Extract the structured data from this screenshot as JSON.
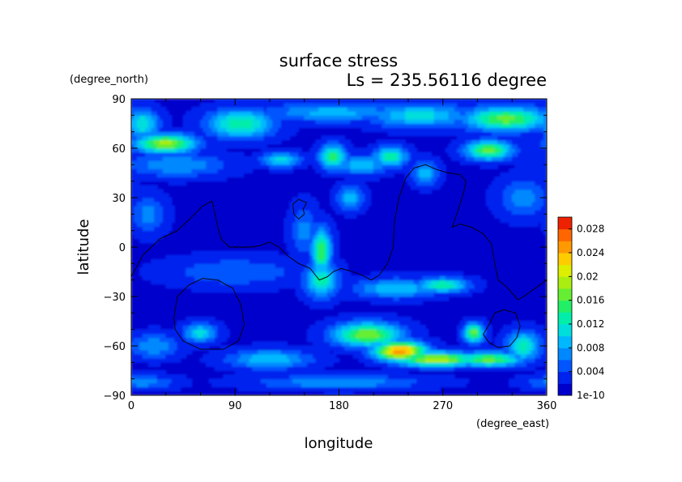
{
  "chart_data": {
    "type": "heatmap",
    "title": "surface stress",
    "subtitle": "Ls = 235.56116 degree",
    "xlabel": "longitude",
    "ylabel": "latitude",
    "x_units": "(degree_east)",
    "y_units": "(degree_north)",
    "xlim": [
      0,
      360
    ],
    "ylim": [
      -90,
      90
    ],
    "x_ticks": [
      "0",
      "90",
      "180",
      "270",
      "360"
    ],
    "y_ticks": [
      "90",
      "60",
      "30",
      "0",
      "−30",
      "−60",
      "−90"
    ],
    "colorbar": {
      "ticks": [
        "0.028",
        "0.024",
        "0.02",
        "0.016",
        "0.012",
        "0.008",
        "0.004",
        "1e-10"
      ],
      "tick_values": [
        0.028,
        0.024,
        0.02,
        0.016,
        0.012,
        0.008,
        0.004,
        0.0
      ],
      "range": [
        0,
        0.03
      ],
      "levels": 15,
      "colors": [
        "#0000cc",
        "#0022ee",
        "#0055ff",
        "#0088ff",
        "#00b8ff",
        "#00dddd",
        "#00eeaa",
        "#22ee66",
        "#66ee33",
        "#aaee11",
        "#ddee00",
        "#ffcc00",
        "#ff9900",
        "#ff6600",
        "#ee2200"
      ]
    },
    "hotspots": [
      {
        "lon": 30,
        "lat": 63,
        "value": 0.019,
        "sx": 18,
        "sy": 4
      },
      {
        "lon": 325,
        "lat": 78,
        "value": 0.017,
        "sx": 25,
        "sy": 5
      },
      {
        "lon": 95,
        "lat": 75,
        "value": 0.014,
        "sx": 20,
        "sy": 6
      },
      {
        "lon": 250,
        "lat": 80,
        "value": 0.011,
        "sx": 30,
        "sy": 5
      },
      {
        "lon": 10,
        "lat": 75,
        "value": 0.012,
        "sx": 10,
        "sy": 6
      },
      {
        "lon": 175,
        "lat": 82,
        "value": 0.009,
        "sx": 40,
        "sy": 4
      },
      {
        "lon": 310,
        "lat": 59,
        "value": 0.017,
        "sx": 14,
        "sy": 4
      },
      {
        "lon": 175,
        "lat": 55,
        "value": 0.015,
        "sx": 8,
        "sy": 5
      },
      {
        "lon": 225,
        "lat": 55,
        "value": 0.014,
        "sx": 10,
        "sy": 4
      },
      {
        "lon": 130,
        "lat": 53,
        "value": 0.011,
        "sx": 12,
        "sy": 3
      },
      {
        "lon": 200,
        "lat": 50,
        "value": 0.01,
        "sx": 15,
        "sy": 4
      },
      {
        "lon": 40,
        "lat": 50,
        "value": 0.008,
        "sx": 30,
        "sy": 5
      },
      {
        "lon": 255,
        "lat": 45,
        "value": 0.009,
        "sx": 8,
        "sy": 5
      },
      {
        "lon": 340,
        "lat": 30,
        "value": 0.007,
        "sx": 15,
        "sy": 8
      },
      {
        "lon": 165,
        "lat": -2,
        "value": 0.016,
        "sx": 6,
        "sy": 9
      },
      {
        "lon": 165,
        "lat": -20,
        "value": 0.013,
        "sx": 10,
        "sy": 7
      },
      {
        "lon": 150,
        "lat": 10,
        "value": 0.007,
        "sx": 8,
        "sy": 10
      },
      {
        "lon": 190,
        "lat": 30,
        "value": 0.009,
        "sx": 8,
        "sy": 5
      },
      {
        "lon": 270,
        "lat": -23,
        "value": 0.014,
        "sx": 15,
        "sy": 3
      },
      {
        "lon": 230,
        "lat": -25,
        "value": 0.01,
        "sx": 25,
        "sy": 4
      },
      {
        "lon": 90,
        "lat": -15,
        "value": 0.006,
        "sx": 40,
        "sy": 6
      },
      {
        "lon": 15,
        "lat": 20,
        "value": 0.007,
        "sx": 10,
        "sy": 8
      },
      {
        "lon": 205,
        "lat": -53,
        "value": 0.018,
        "sx": 20,
        "sy": 5
      },
      {
        "lon": 233,
        "lat": -63,
        "value": 0.026,
        "sx": 15,
        "sy": 4
      },
      {
        "lon": 265,
        "lat": -68,
        "value": 0.02,
        "sx": 25,
        "sy": 3
      },
      {
        "lon": 310,
        "lat": -68,
        "value": 0.017,
        "sx": 20,
        "sy": 3
      },
      {
        "lon": 297,
        "lat": -52,
        "value": 0.017,
        "sx": 6,
        "sy": 4
      },
      {
        "lon": 340,
        "lat": -60,
        "value": 0.013,
        "sx": 10,
        "sy": 6
      },
      {
        "lon": 60,
        "lat": -52,
        "value": 0.011,
        "sx": 10,
        "sy": 4
      },
      {
        "lon": 120,
        "lat": -68,
        "value": 0.01,
        "sx": 25,
        "sy": 4
      },
      {
        "lon": 20,
        "lat": -60,
        "value": 0.008,
        "sx": 15,
        "sy": 5
      },
      {
        "lon": 180,
        "lat": -82,
        "value": 0.008,
        "sx": 50,
        "sy": 3
      },
      {
        "lon": 10,
        "lat": -82,
        "value": 0.007,
        "sx": 20,
        "sy": 3
      }
    ],
    "contours": [
      [
        [
          0,
          -18
        ],
        [
          10,
          -5
        ],
        [
          25,
          5
        ],
        [
          40,
          10
        ],
        [
          52,
          18
        ],
        [
          62,
          25
        ],
        [
          70,
          28
        ],
        [
          72,
          22
        ],
        [
          75,
          12
        ],
        [
          78,
          5
        ],
        [
          85,
          0
        ],
        [
          95,
          0
        ],
        [
          105,
          0
        ],
        [
          112,
          1
        ],
        [
          120,
          3
        ],
        [
          128,
          0
        ],
        [
          135,
          -5
        ],
        [
          145,
          -10
        ],
        [
          155,
          -13
        ],
        [
          163,
          -20
        ],
        [
          170,
          -18
        ],
        [
          175,
          -15
        ],
        [
          182,
          -13
        ],
        [
          192,
          -15
        ],
        [
          200,
          -17
        ],
        [
          208,
          -20
        ],
        [
          215,
          -17
        ],
        [
          222,
          -10
        ],
        [
          227,
          0
        ],
        [
          228,
          15
        ],
        [
          232,
          30
        ],
        [
          238,
          42
        ],
        [
          245,
          48
        ],
        [
          255,
          50
        ],
        [
          265,
          47
        ],
        [
          275,
          45
        ],
        [
          285,
          44
        ],
        [
          290,
          40
        ],
        [
          288,
          33
        ],
        [
          283,
          22
        ],
        [
          278,
          12
        ],
        [
          285,
          14
        ],
        [
          295,
          12
        ],
        [
          305,
          8
        ],
        [
          312,
          2
        ],
        [
          315,
          -10
        ],
        [
          318,
          -20
        ],
        [
          325,
          -24
        ],
        [
          330,
          -28
        ],
        [
          335,
          -32
        ],
        [
          340,
          -30
        ],
        [
          350,
          -25
        ],
        [
          360,
          -20
        ]
      ],
      [
        [
          37,
          -43
        ],
        [
          40,
          -30
        ],
        [
          50,
          -23
        ],
        [
          62,
          -19
        ],
        [
          75,
          -20
        ],
        [
          88,
          -25
        ],
        [
          95,
          -35
        ],
        [
          98,
          -47
        ],
        [
          93,
          -57
        ],
        [
          80,
          -62
        ],
        [
          60,
          -62
        ],
        [
          45,
          -57
        ],
        [
          38,
          -50
        ],
        [
          37,
          -43
        ]
      ],
      [
        [
          152,
          27
        ],
        [
          149,
          23
        ],
        [
          150,
          20
        ],
        [
          145,
          17
        ],
        [
          141,
          20
        ],
        [
          140,
          26
        ],
        [
          145,
          29
        ],
        [
          152,
          27
        ]
      ],
      [
        [
          323,
          -38
        ],
        [
          315,
          -40
        ],
        [
          310,
          -47
        ],
        [
          305,
          -53
        ],
        [
          310,
          -58
        ],
        [
          318,
          -61
        ],
        [
          328,
          -60
        ],
        [
          334,
          -55
        ],
        [
          337,
          -48
        ],
        [
          333,
          -40
        ],
        [
          323,
          -38
        ]
      ]
    ]
  }
}
